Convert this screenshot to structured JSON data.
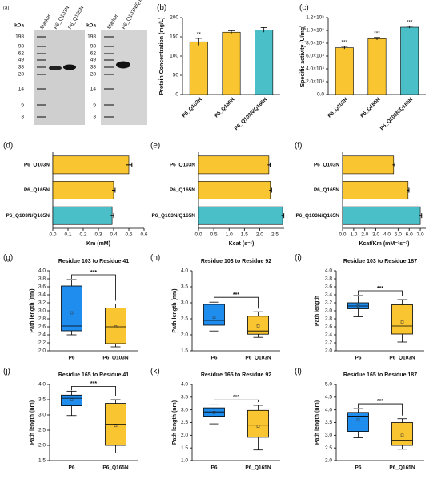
{
  "gels": {
    "panel": "(a)",
    "left": {
      "unit": "kDa",
      "markers": [
        "198",
        "98",
        "62",
        "49",
        "38",
        "28",
        "14",
        "6",
        "3"
      ],
      "lanes": [
        "Marker",
        "P6_Q103N",
        "P6_Q165N"
      ]
    },
    "right": {
      "unit": "kDa",
      "markers": [
        "198",
        "98",
        "62",
        "49",
        "38",
        "28",
        "14",
        "6",
        "3"
      ],
      "lanes": [
        "Marker",
        "P6_Q103N/Q165N"
      ]
    }
  },
  "chart_data": [
    {
      "type": "bar",
      "panel": "(b)",
      "ylabel": "Protein Concentration (mg/L)",
      "categories": [
        "P6_Q103N",
        "P6_Q165N",
        "P6_Q103N/Q165N"
      ],
      "values": [
        137,
        162,
        168
      ],
      "errors": [
        9,
        4,
        6
      ],
      "colors": [
        "#f9c530",
        "#f9c530",
        "#4bbfc8"
      ],
      "annotations": [
        {
          "index": 0,
          "text": "**"
        }
      ],
      "ylim": [
        0,
        200
      ],
      "yticks": [
        0,
        50,
        100,
        150,
        200
      ]
    },
    {
      "type": "bar",
      "panel": "(c)",
      "ylabel": "Specific activity (U/mg)",
      "categories": [
        "P6_Q103N",
        "P6_Q165N",
        "P6_Q103N/Q165N"
      ],
      "values": [
        73000,
        87000,
        105000
      ],
      "errors": [
        2000,
        2000,
        1500
      ],
      "colors": [
        "#f9c530",
        "#f9c530",
        "#4bbfc8"
      ],
      "annotations": [
        {
          "index": 0,
          "text": "***"
        },
        {
          "index": 1,
          "text": "***"
        },
        {
          "index": 2,
          "text": "***"
        }
      ],
      "ylim": [
        0,
        120000
      ],
      "yticks": [
        {
          "value": 0,
          "label": "0.0"
        },
        {
          "value": 20000,
          "label": "2.0×10⁴"
        },
        {
          "value": 40000,
          "label": "4.0×10⁴"
        },
        {
          "value": 60000,
          "label": "6.0×10⁴"
        },
        {
          "value": 80000,
          "label": "8.0×10⁴"
        },
        {
          "value": 100000,
          "label": "1.0×10⁵"
        },
        {
          "value": 120000,
          "label": "1.2×10⁵"
        }
      ]
    },
    {
      "type": "hbar",
      "panel": "(d)",
      "xlabel": "Km (mM)",
      "categories": [
        "P6_Q103N",
        "P6_Q165N",
        "P6_Q103N/Q165N"
      ],
      "values": [
        0.5,
        0.4,
        0.39
      ],
      "errors": [
        0.02,
        0.01,
        0.01
      ],
      "colors": [
        "#f9c530",
        "#f9c530",
        "#4bbfc8"
      ],
      "xlim": [
        0,
        0.6
      ],
      "xticks": [
        {
          "value": 0,
          "label": "0.0"
        },
        0.1,
        0.2,
        0.3,
        0.4,
        0.5,
        0.6
      ]
    },
    {
      "type": "hbar",
      "panel": "(e)",
      "xlabel": "Kcat (s⁻¹)",
      "categories": [
        "P6_Q103N",
        "P6_Q165N",
        "P6_Q103N/Q165N"
      ],
      "values": [
        2.3,
        2.35,
        2.75
      ],
      "errors": [
        0.04,
        0.04,
        0.04
      ],
      "colors": [
        "#f9c530",
        "#f9c530",
        "#4bbfc8"
      ],
      "xlim": [
        0,
        2.8
      ],
      "xticks": [
        {
          "value": 0,
          "label": "0.0"
        },
        0.5,
        {
          "value": 1,
          "label": "1.0"
        },
        1.5,
        {
          "value": 2,
          "label": "2.0"
        },
        2.5
      ]
    },
    {
      "type": "hbar",
      "panel": "(f)",
      "xlabel": "Kcat/Km (mM⁻¹s⁻¹)",
      "categories": [
        "P6_Q103N",
        "P6_Q165N",
        "P6_Q103N/Q165N"
      ],
      "values": [
        4.6,
        5.9,
        7.0
      ],
      "errors": [
        0.1,
        0.08,
        0.12
      ],
      "colors": [
        "#f9c530",
        "#f9c530",
        "#4bbfc8"
      ],
      "xlim": [
        0,
        7.5
      ],
      "xticks": [
        {
          "value": 0,
          "label": "0.0"
        },
        {
          "value": 1,
          "label": "1.0"
        },
        {
          "value": 2,
          "label": "2.0"
        },
        {
          "value": 3,
          "label": "3.0"
        },
        {
          "value": 4,
          "label": "4.0"
        },
        {
          "value": 5,
          "label": "5.0"
        },
        {
          "value": 6,
          "label": "6.0"
        },
        {
          "value": 7,
          "label": "7.0"
        }
      ]
    },
    {
      "type": "box",
      "panel": "(g)",
      "title": "Residue 103 to Residue 41",
      "ylabel": "Path length (nm)",
      "significance": "***",
      "boxes": [
        {
          "name": "P6",
          "color": "#1f8ded",
          "min": 2.4,
          "q1": 2.5,
          "median": 2.62,
          "q3": 3.62,
          "max": 3.78,
          "mean": 2.95
        },
        {
          "name": "P6_Q103N",
          "color": "#f9c530",
          "min": 2.1,
          "q1": 2.18,
          "median": 2.6,
          "q3": 3.07,
          "max": 3.17,
          "mean": 2.6
        }
      ],
      "ylim": [
        2.0,
        4.0
      ],
      "yticks": [
        {
          "value": 2,
          "label": "2.0"
        },
        2.2,
        2.4,
        2.6,
        2.8,
        {
          "value": 3,
          "label": "3.0"
        },
        3.2,
        3.4,
        3.6,
        3.8,
        {
          "value": 4,
          "label": "4.0"
        }
      ]
    },
    {
      "type": "box",
      "panel": "(h)",
      "title": "Residue 103 to Residue 92",
      "ylabel": "Path length (nm)",
      "significance": "***",
      "boxes": [
        {
          "name": "P6",
          "color": "#1f8ded",
          "min": 2.12,
          "q1": 2.3,
          "median": 2.45,
          "q3": 2.95,
          "max": 3.02,
          "mean": 2.55
        },
        {
          "name": "P6_Q103N",
          "color": "#f9c530",
          "min": 1.92,
          "q1": 2.02,
          "median": 2.12,
          "q3": 2.58,
          "max": 2.72,
          "mean": 2.28
        }
      ],
      "ylim": [
        1.5,
        4.0
      ],
      "yticks": [
        1.5,
        {
          "value": 2,
          "label": "2.0"
        },
        2.5,
        {
          "value": 3,
          "label": "3.0"
        },
        3.5,
        {
          "value": 4,
          "label": "4.0"
        }
      ]
    },
    {
      "type": "box",
      "panel": "(i)",
      "title": "Residue 103 to Residue 187",
      "ylabel": "Path length",
      "significance": "***",
      "boxes": [
        {
          "name": "P6",
          "color": "#1f8ded",
          "min": 2.85,
          "q1": 3.05,
          "median": 3.12,
          "q3": 3.2,
          "max": 3.38,
          "mean": 3.12
        },
        {
          "name": "P6_Q103N",
          "color": "#f9c530",
          "min": 2.22,
          "q1": 2.42,
          "median": 2.62,
          "q3": 3.15,
          "max": 3.28,
          "mean": 2.72
        }
      ],
      "ylim": [
        2.0,
        4.0
      ],
      "yticks": [
        {
          "value": 2,
          "label": "2.0"
        },
        2.2,
        2.4,
        2.6,
        2.8,
        {
          "value": 3,
          "label": "3.0"
        },
        3.2,
        3.4,
        3.6,
        3.8,
        {
          "value": 4,
          "label": "4.0"
        }
      ]
    },
    {
      "type": "box",
      "panel": "(j)",
      "title": "Residue 165 to Residue 41",
      "ylabel": "Path length (nm)",
      "significance": "***",
      "boxes": [
        {
          "name": "P6",
          "color": "#1f8ded",
          "min": 2.98,
          "q1": 3.3,
          "median": 3.55,
          "q3": 3.65,
          "max": 3.78,
          "mean": 3.5
        },
        {
          "name": "P6_Q165N",
          "color": "#f9c530",
          "min": 1.75,
          "q1": 2.0,
          "median": 2.7,
          "q3": 3.38,
          "max": 3.5,
          "mean": 2.65
        }
      ],
      "ylim": [
        1.5,
        4.0
      ],
      "yticks": [
        1.5,
        {
          "value": 2,
          "label": "2.0"
        },
        2.5,
        {
          "value": 3,
          "label": "3.0"
        },
        3.5,
        {
          "value": 4,
          "label": "4.0"
        }
      ]
    },
    {
      "type": "box",
      "panel": "(k)",
      "title": "Residue 165 to Residue 92",
      "ylabel": "Path length (nm)",
      "significance": "***",
      "boxes": [
        {
          "name": "P6",
          "color": "#1f8ded",
          "min": 2.45,
          "q1": 2.75,
          "median": 2.92,
          "q3": 3.08,
          "max": 3.2,
          "mean": 2.9
        },
        {
          "name": "P6_Q165N",
          "color": "#f9c530",
          "min": 1.42,
          "q1": 1.92,
          "median": 2.4,
          "q3": 2.98,
          "max": 3.18,
          "mean": 2.35
        }
      ],
      "ylim": [
        1.0,
        4.0
      ],
      "yticks": [
        {
          "value": 1,
          "label": "1.0"
        },
        1.5,
        {
          "value": 2,
          "label": "2.0"
        },
        2.5,
        {
          "value": 3,
          "label": "3.0"
        },
        3.5,
        {
          "value": 4,
          "label": "4.0"
        }
      ]
    },
    {
      "type": "box",
      "panel": "(l)",
      "title": "Residue 165 to Residue 187",
      "ylabel": "Path length (nm)",
      "significance": "***",
      "boxes": [
        {
          "name": "P6",
          "color": "#1f8ded",
          "min": 2.9,
          "q1": 3.15,
          "median": 3.75,
          "q3": 3.9,
          "max": 4.05,
          "mean": 3.6
        },
        {
          "name": "P6_Q165N",
          "color": "#f9c530",
          "min": 2.45,
          "q1": 2.6,
          "median": 2.8,
          "q3": 3.5,
          "max": 3.65,
          "mean": 3.0
        }
      ],
      "ylim": [
        2.0,
        5.0
      ],
      "yticks": [
        {
          "value": 2,
          "label": "2.0"
        },
        2.5,
        {
          "value": 3,
          "label": "3.0"
        },
        3.5,
        {
          "value": 4,
          "label": "4.0"
        },
        4.5,
        {
          "value": 5,
          "label": "5.0"
        }
      ]
    }
  ]
}
